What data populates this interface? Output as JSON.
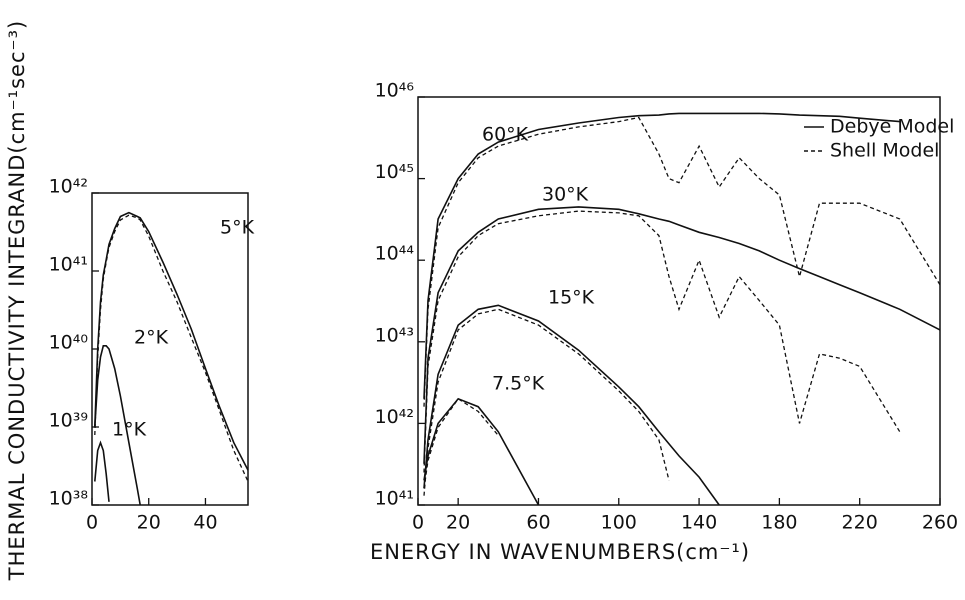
{
  "chart_data": [
    {
      "type": "line",
      "yscale": "log",
      "ylabel": "THERMAL CONDUCTIVITY INTEGRAND(cm⁻¹sec⁻³)",
      "xlim": [
        0,
        55
      ],
      "xticks": [
        0,
        20,
        40
      ],
      "ylim": [
        1e+38,
        1e+42
      ],
      "yticks": [
        {
          "value": 1e+38,
          "label": "10³⁸"
        },
        {
          "value": 1e+39,
          "label": "10³⁹"
        },
        {
          "value": 1e+40,
          "label": "10⁴⁰"
        },
        {
          "value": 1e+41,
          "label": "10⁴¹"
        },
        {
          "value": 1e+42,
          "label": "10⁴²"
        }
      ],
      "color": "#111111",
      "x": [
        1,
        2,
        3,
        4,
        5,
        6,
        8,
        10,
        13,
        16,
        17,
        20,
        25,
        30,
        35,
        40,
        45,
        50,
        55
      ],
      "series": [
        {
          "name": "5°K",
          "values": [
            1e+39,
            1e+40,
            4e+40,
            8.9e+40,
            1.4e+41,
            2.2e+41,
            3.5e+41,
            5e+41,
            5.6e+41,
            5e+41,
            4.8e+41,
            3.2e+41,
            1.3e+41,
            5e+40,
            1.8e+40,
            5.6e+39,
            1.8e+39,
            6.3e+38,
            2.8e+38
          ],
          "shell_values": [
            7.9e+38,
            7.9e+39,
            3.2e+40,
            7.9e+40,
            1.3e+41,
            2e+41,
            3.2e+41,
            4.5e+41,
            5.2e+41,
            4.8e+41,
            4.5e+41,
            2.8e+41,
            1e+41,
            4e+40,
            1.4e+40,
            5e+39,
            1.6e+39,
            5e+38,
            2e+38
          ]
        },
        {
          "name": "2°K",
          "values": [
            1e+39,
            4e+39,
            7.9e+39,
            1.1e+40,
            1.1e+40,
            1e+40,
            5.6e+39,
            2.5e+39,
            6.3e+38,
            1.6e+38,
            1e+38,
            null,
            null,
            null,
            null,
            null,
            null,
            null,
            null
          ]
        },
        {
          "name": "1°K",
          "values": [
            2e+38,
            5e+38,
            6.3e+38,
            5e+38,
            2.5e+38,
            1.1e+38,
            null,
            null,
            null,
            null,
            null,
            null,
            null,
            null,
            null,
            null,
            null,
            null,
            null
          ]
        }
      ]
    },
    {
      "type": "line",
      "yscale": "log",
      "xlabel": "ENERGY IN WAVENUMBERS(cm⁻¹)",
      "xlim": [
        0,
        260
      ],
      "xticks": [
        0,
        20,
        60,
        100,
        140,
        180,
        220,
        260
      ],
      "ylim": [
        1e+41,
        1e+46
      ],
      "yticks": [
        {
          "value": 1e+41,
          "label": "10⁴¹"
        },
        {
          "value": 1e+42,
          "label": "10⁴²"
        },
        {
          "value": 1e+43,
          "label": "10⁴³"
        },
        {
          "value": 1e+44,
          "label": "10⁴⁴"
        },
        {
          "value": 1e+45,
          "label": "10⁴⁵"
        },
        {
          "value": 1e+46,
          "label": "10⁴⁶"
        }
      ],
      "color": "#111111",
      "legend_position": "upper right",
      "legend": [
        {
          "name": "Debye Model",
          "dash": false
        },
        {
          "name": "Shell Model",
          "dash": true
        }
      ],
      "x": [
        3,
        5,
        10,
        20,
        30,
        40,
        60,
        80,
        100,
        110,
        120,
        125,
        130,
        140,
        150,
        160,
        170,
        180,
        190,
        200,
        210,
        220,
        240,
        260
      ],
      "series": [
        {
          "name": "60°K",
          "values": [
            2e+42,
            3.2e+43,
            3.2e+44,
            1e+45,
            2e+45,
            2.8e+45,
            4e+45,
            4.8e+45,
            5.6e+45,
            5.9e+45,
            6e+45,
            6.2e+45,
            6.3e+45,
            6.3e+45,
            6.3e+45,
            6.3e+45,
            6.3e+45,
            6.2e+45,
            6e+45,
            5.9e+45,
            5.8e+45,
            5.5e+45,
            5e+45,
            null
          ],
          "shell_values": [
            1.6e+42,
            2.5e+43,
            2.5e+44,
            8.9e+44,
            1.8e+45,
            2.5e+45,
            3.5e+45,
            4.3e+45,
            5e+45,
            5.6e+45,
            2e+45,
            1e+45,
            8.9e+44,
            2.5e+45,
            7.9e+44,
            1.8e+45,
            1e+45,
            6.3e+44,
            6.3e+43,
            5e+44,
            5e+44,
            5e+44,
            3.2e+44,
            5e+43
          ]
        },
        {
          "name": "30°K",
          "values": [
            3.2e+41,
            6.3e+42,
            4e+43,
            1.3e+44,
            2.2e+44,
            3.2e+44,
            4.2e+44,
            4.5e+44,
            4.2e+44,
            3.7e+44,
            3.2e+44,
            3e+44,
            2.7e+44,
            2.2e+44,
            1.9e+44,
            1.6e+44,
            1.3e+44,
            1e+44,
            7.9e+43,
            6.3e+43,
            5e+43,
            4e+43,
            2.5e+43,
            1.4e+43
          ],
          "shell_values": [
            2.5e+41,
            5e+42,
            3.2e+43,
            1.1e+44,
            2e+44,
            2.8e+44,
            3.5e+44,
            4e+44,
            3.8e+44,
            3.5e+44,
            2e+44,
            6.3e+43,
            2.5e+43,
            1e+44,
            2e+43,
            6.3e+43,
            3.2e+43,
            1.6e+43,
            1e+42,
            7.1e+42,
            6.3e+42,
            5e+42,
            7.9e+41,
            null
          ]
        },
        {
          "name": "15°K",
          "values": [
            1.6e+41,
            6.3e+41,
            4e+42,
            1.6e+43,
            2.5e+43,
            2.8e+43,
            1.8e+43,
            7.9e+42,
            2.8e+42,
            1.6e+42,
            7.9e+41,
            5.6e+41,
            4e+41,
            2.2e+41,
            1e+41,
            null,
            null,
            null,
            null,
            null,
            null,
            null,
            null,
            null
          ],
          "shell_values": [
            1.3e+41,
            5e+41,
            3.2e+42,
            1.4e+43,
            2.2e+43,
            2.5e+43,
            1.6e+43,
            7.1e+42,
            2.5e+42,
            1.4e+42,
            6.3e+41,
            2e+41,
            null,
            null,
            null,
            null,
            null,
            null,
            null,
            null,
            null,
            null,
            null,
            null
          ]
        },
        {
          "name": "7.5°K",
          "values": [
            2e+41,
            4e+41,
            1e+42,
            2e+42,
            1.6e+42,
            7.9e+41,
            1e+41,
            null,
            null,
            null,
            null,
            null,
            null,
            null,
            null,
            null,
            null,
            null,
            null,
            null,
            null,
            null,
            null,
            null
          ],
          "shell_values": [
            1.6e+41,
            3.5e+41,
            8.9e+41,
            2e+42,
            1.4e+42,
            7.1e+41,
            null,
            null,
            null,
            null,
            null,
            null,
            null,
            null,
            null,
            null,
            null,
            null,
            null,
            null,
            null,
            null,
            null,
            null
          ]
        }
      ]
    }
  ]
}
